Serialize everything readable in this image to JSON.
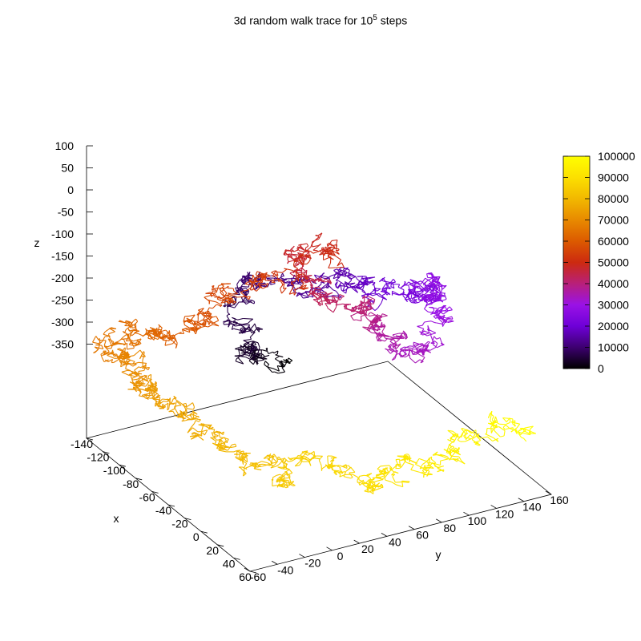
{
  "chart_data": {
    "type": "line",
    "subtype": "3d-random-walk-trace",
    "title": {
      "prefix": "3d random walk trace for 10",
      "sup": "5",
      "suffix": " steps"
    },
    "xlabel": "x",
    "ylabel": "y",
    "zlabel": "z",
    "xlim": [
      -140,
      60
    ],
    "ylim": [
      -60,
      160
    ],
    "zlim": [
      -400,
      100
    ],
    "x_ticks": [
      "-140",
      "-120",
      "-100",
      "-80",
      "-60",
      "-40",
      "-20",
      "0",
      "20",
      "40",
      "60"
    ],
    "y_ticks": [
      "-60",
      "-40",
      "-20",
      "0",
      "20",
      "40",
      "60",
      "80",
      "100",
      "120",
      "140",
      "160"
    ],
    "z_ticks": [
      "100",
      "50",
      "0",
      "-50",
      "-100",
      "-150",
      "-200",
      "-250",
      "-300",
      "-350"
    ],
    "colorbar": {
      "label_ticks": [
        "100000",
        "90000",
        "80000",
        "70000",
        "60000",
        "50000",
        "40000",
        "30000",
        "20000",
        "10000",
        "0"
      ],
      "range": [
        0,
        100000
      ],
      "palette": [
        "#000000",
        "#3d0070",
        "#6e00d8",
        "#9a12e6",
        "#b8207a",
        "#cc2a10",
        "#dc5a00",
        "#e88a00",
        "#f2b800",
        "#fce000",
        "#ffff00"
      ]
    },
    "series": [
      {
        "steps": 100000,
        "path_points": [
          [
            0,
            0,
            -140
          ],
          [
            -20,
            -10,
            -145
          ],
          [
            -35,
            -5,
            -150
          ],
          [
            -55,
            0,
            -120
          ],
          [
            -70,
            10,
            -80
          ],
          [
            -55,
            30,
            -85
          ],
          [
            -30,
            40,
            -70
          ],
          [
            -20,
            55,
            -40
          ],
          [
            0,
            60,
            -55
          ],
          [
            -10,
            80,
            -80
          ],
          [
            5,
            90,
            -60
          ],
          [
            0,
            110,
            -90
          ],
          [
            -20,
            125,
            -110
          ],
          [
            -30,
            130,
            -160
          ],
          [
            -10,
            120,
            -185
          ],
          [
            0,
            95,
            -185
          ],
          [
            -10,
            80,
            -150
          ],
          [
            -5,
            70,
            -110
          ],
          [
            10,
            50,
            -75
          ],
          [
            0,
            30,
            -50
          ],
          [
            -20,
            25,
            -20
          ],
          [
            -30,
            30,
            5
          ],
          [
            -20,
            50,
            -10
          ],
          [
            -25,
            10,
            -30
          ],
          [
            -45,
            0,
            -60
          ],
          [
            -55,
            -10,
            -100
          ],
          [
            -70,
            -20,
            -150
          ],
          [
            -85,
            -40,
            -180
          ],
          [
            -100,
            -50,
            -180
          ],
          [
            -110,
            -60,
            -200
          ],
          [
            -120,
            -50,
            -240
          ],
          [
            -105,
            -40,
            -255
          ],
          [
            -110,
            -35,
            -300
          ],
          [
            -100,
            -20,
            -330
          ],
          [
            -80,
            -10,
            -340
          ],
          [
            -60,
            -5,
            -365
          ],
          [
            -45,
            10,
            -380
          ],
          [
            -30,
            20,
            -390
          ],
          [
            -20,
            40,
            -360
          ],
          [
            0,
            60,
            -400
          ],
          [
            10,
            70,
            -370
          ],
          [
            20,
            90,
            -350
          ],
          [
            25,
            110,
            -320
          ],
          [
            35,
            130,
            -290
          ],
          [
            40,
            150,
            -300
          ]
        ]
      }
    ]
  }
}
